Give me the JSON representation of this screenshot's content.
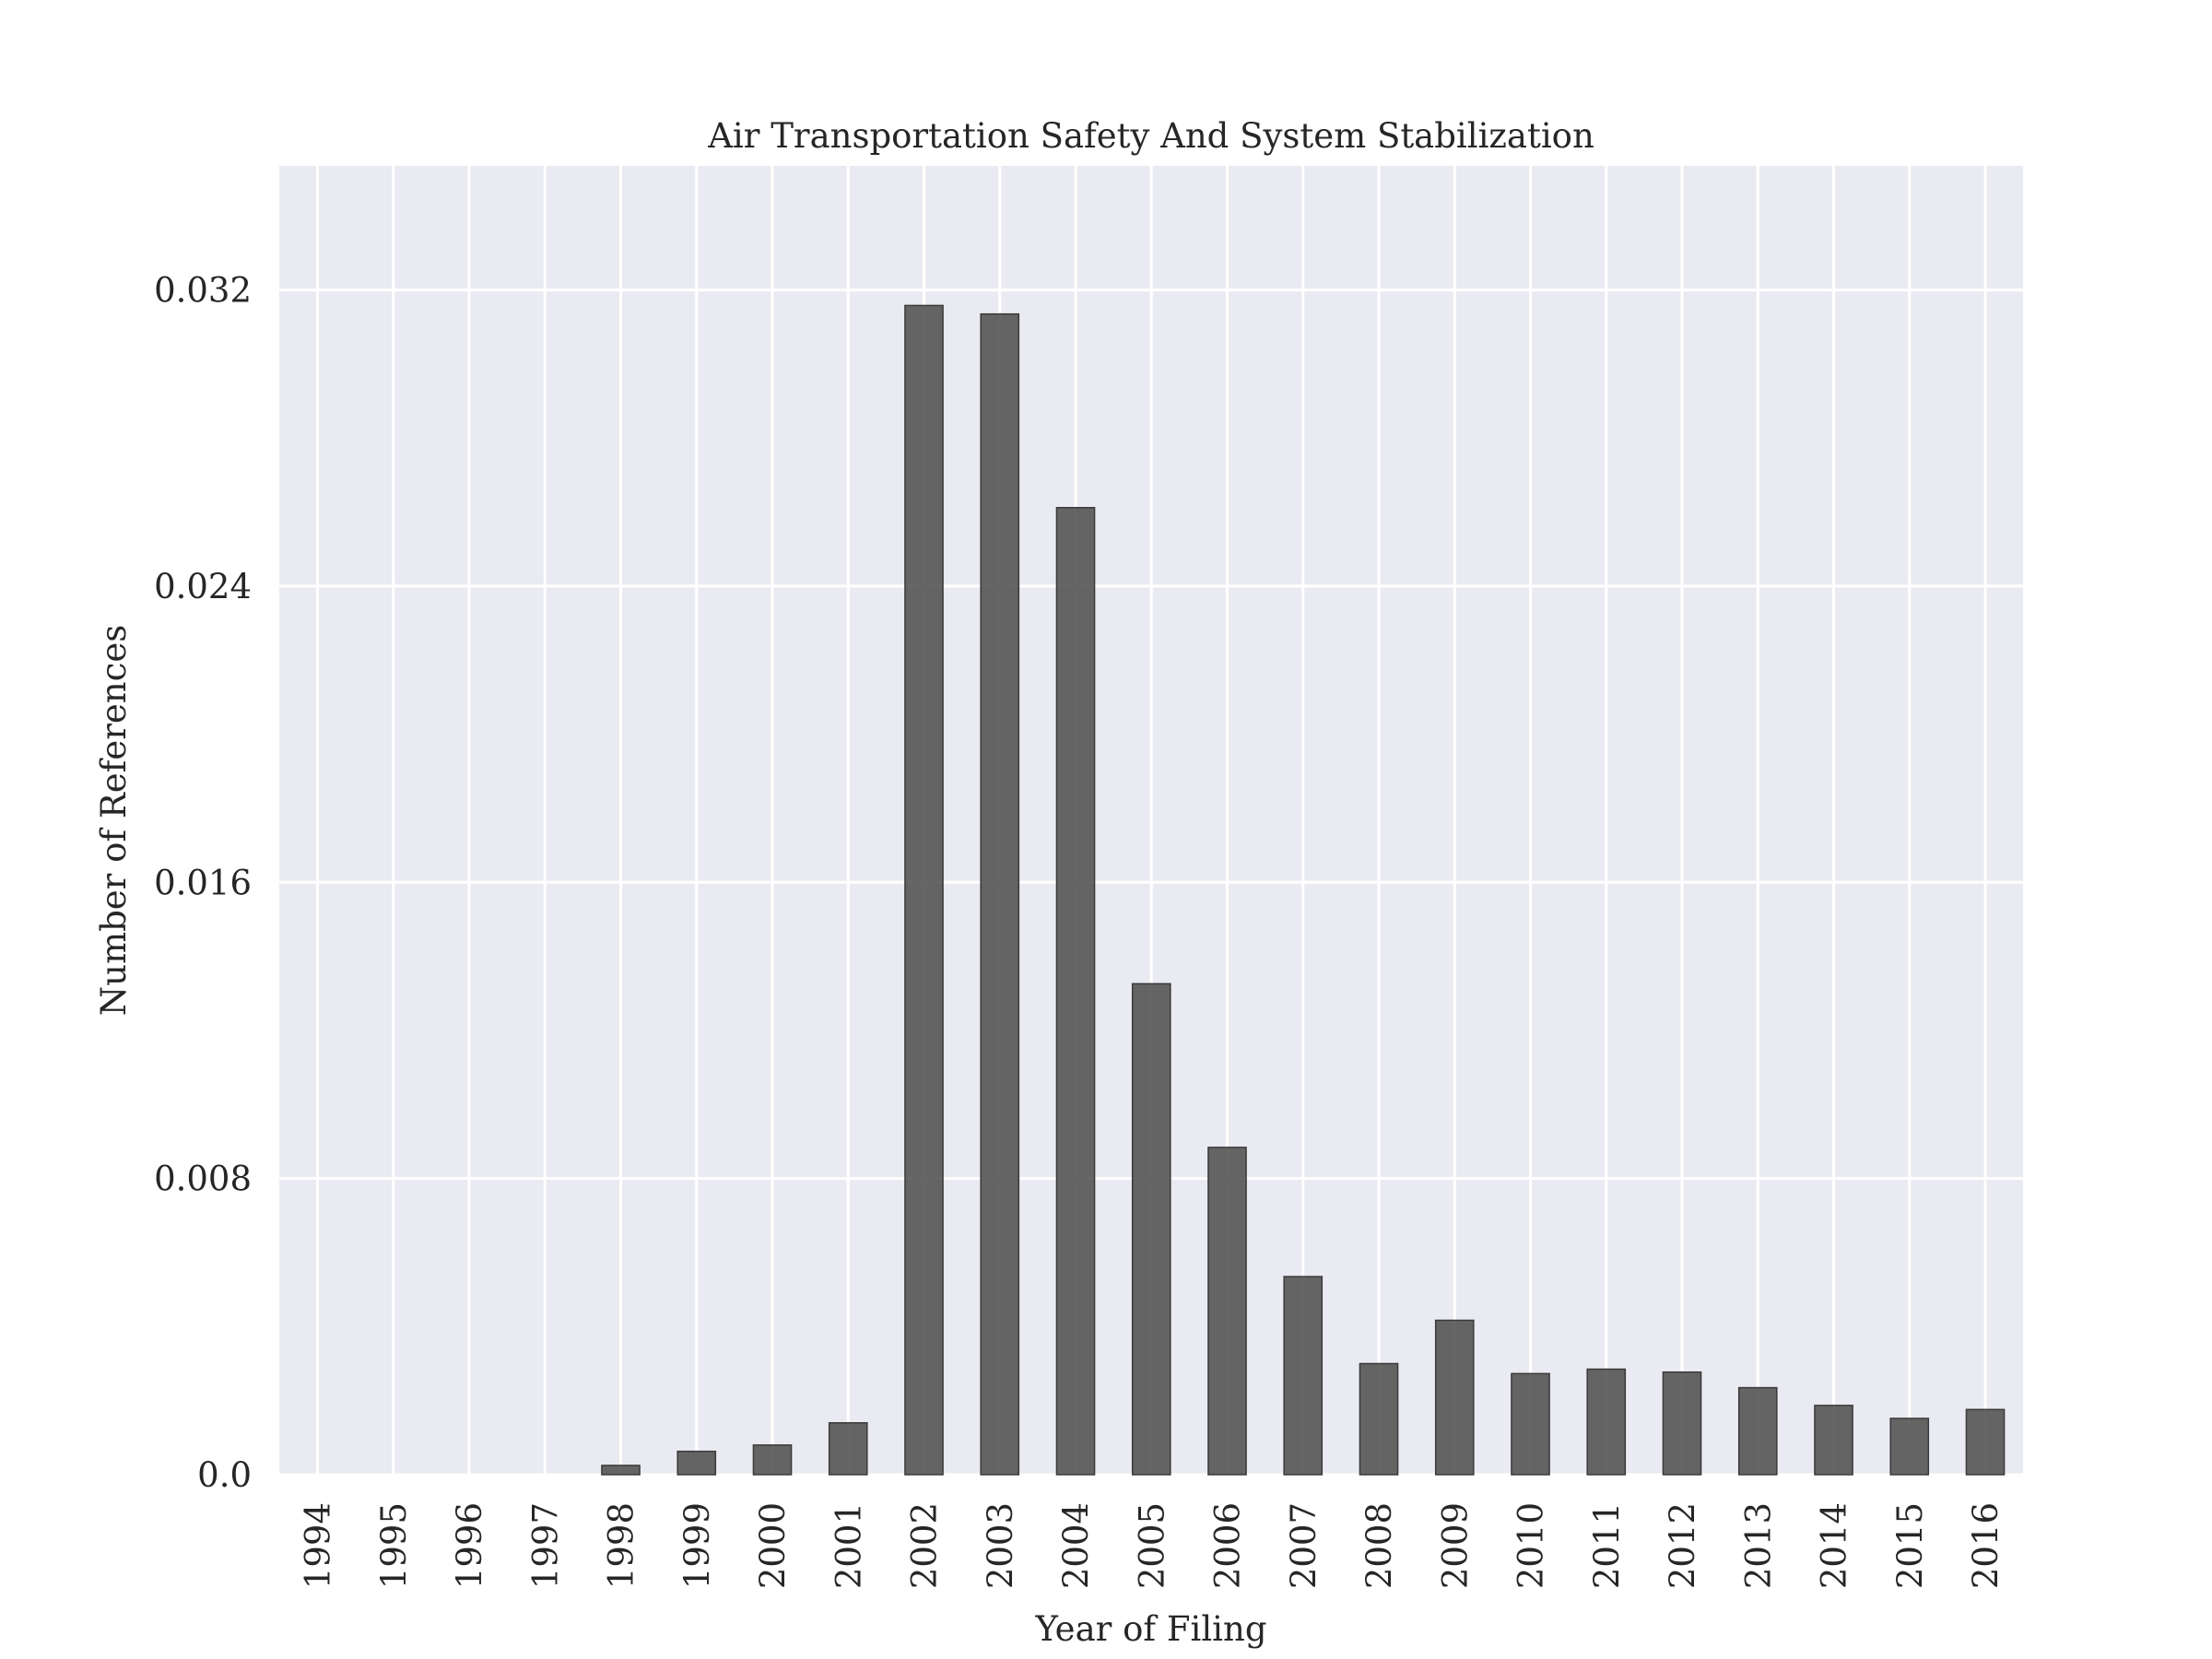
{
  "chart_data": {
    "type": "bar",
    "title": "Air Transportation Safety And System Stabilization",
    "xlabel": "Year of Filing",
    "ylabel": "Number of References",
    "categories": [
      "1994",
      "1995",
      "1996",
      "1997",
      "1998",
      "1999",
      "2000",
      "2001",
      "2002",
      "2003",
      "2004",
      "2005",
      "2006",
      "2007",
      "2008",
      "2009",
      "2010",
      "2011",
      "2012",
      "2013",
      "2014",
      "2015",
      "2016"
    ],
    "values": [
      0.0,
      0.0,
      0.0,
      0.0,
      0.00025,
      0.00063,
      0.0008,
      0.0014,
      0.03158,
      0.03135,
      0.02612,
      0.01326,
      0.00884,
      0.00535,
      0.003,
      0.00417,
      0.00273,
      0.00285,
      0.00277,
      0.00235,
      0.00187,
      0.00152,
      0.00176
    ],
    "yticks": [
      "0.0",
      "0.008",
      "0.016",
      "0.024",
      "0.032"
    ],
    "ytick_values": [
      0,
      0.008,
      0.016,
      0.024,
      0.032
    ],
    "ylim": [
      0,
      0.03535
    ],
    "grid": true,
    "colors": {
      "plot_background": "#eaeaf2",
      "grid": "#ffffff",
      "bar_fill": "#555555",
      "bar_edge": "#3a3a3a",
      "text": "#262626"
    }
  }
}
